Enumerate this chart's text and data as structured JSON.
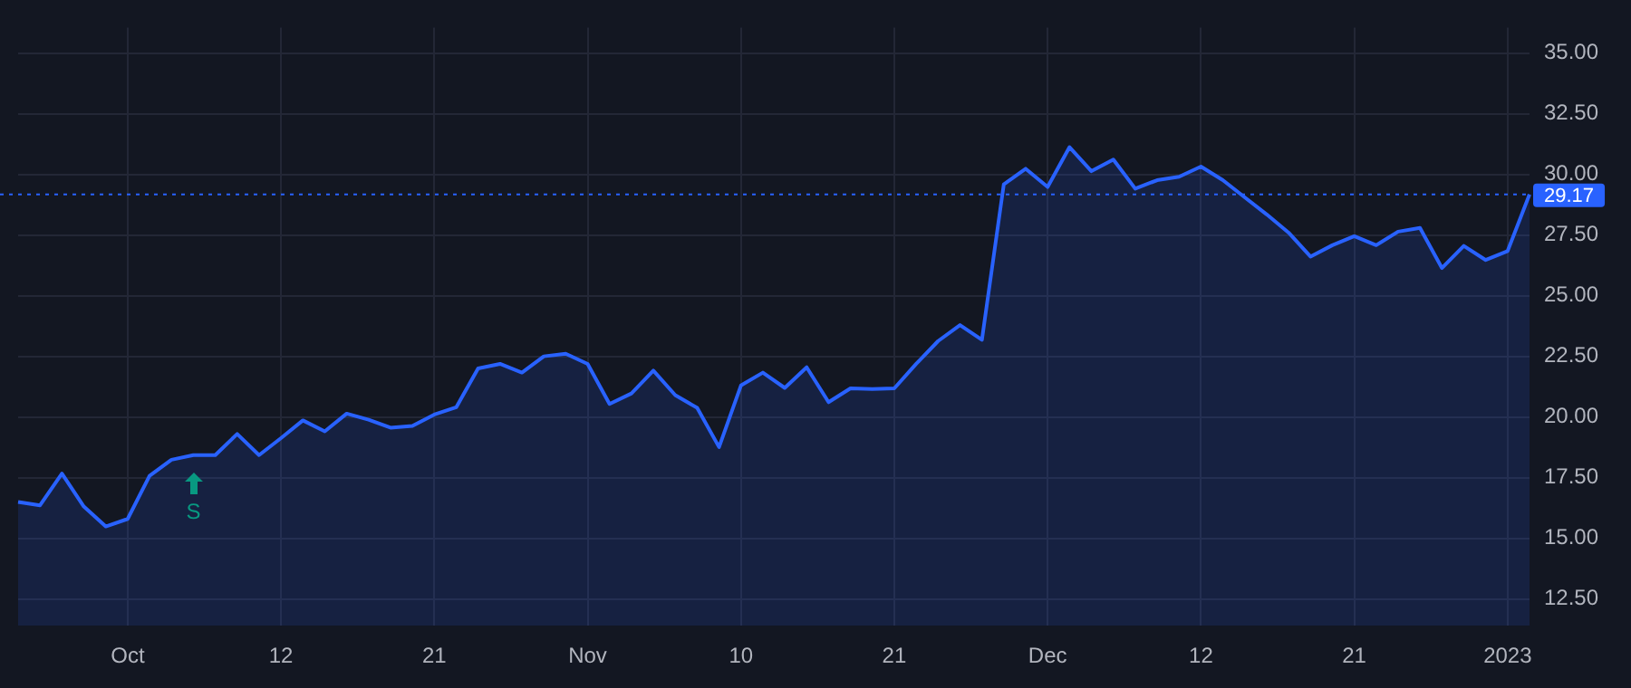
{
  "chart_data": {
    "type": "area",
    "categories": [
      null,
      null,
      null,
      null,
      null,
      "Oct",
      null,
      null,
      null,
      null,
      null,
      null,
      "12",
      null,
      null,
      null,
      null,
      null,
      null,
      "21",
      null,
      null,
      null,
      null,
      null,
      null,
      "Nov",
      null,
      null,
      null,
      null,
      null,
      null,
      "10",
      null,
      null,
      null,
      null,
      null,
      null,
      "21",
      null,
      null,
      null,
      null,
      null,
      null,
      "Dec",
      null,
      null,
      null,
      null,
      null,
      null,
      "12",
      null,
      null,
      null,
      null,
      null,
      null,
      "21",
      null,
      null,
      null,
      null,
      null,
      null,
      "2023",
      null
    ],
    "series": [
      {
        "color": "#2962ff",
        "values": [
          16.5,
          16.36,
          17.67,
          16.31,
          15.49,
          15.8,
          17.58,
          18.24,
          18.43,
          18.43,
          19.3,
          18.43,
          19.13,
          19.86,
          19.41,
          20.14,
          19.89,
          19.56,
          19.63,
          20.1,
          20.4,
          22.0,
          22.19,
          21.83,
          22.5,
          22.61,
          22.19,
          20.54,
          20.97,
          21.91,
          20.9,
          20.38,
          18.76,
          21.3,
          21.83,
          21.2,
          22.05,
          20.61,
          21.18,
          21.15,
          21.18,
          22.19,
          23.13,
          23.79,
          23.18,
          29.59,
          30.23,
          29.48,
          31.12,
          30.13,
          30.61,
          29.41,
          29.76,
          29.9,
          30.32,
          29.76,
          29.05,
          28.35,
          27.6,
          26.61,
          27.08,
          27.45,
          27.08,
          27.64,
          27.79,
          26.14,
          27.05,
          26.47,
          26.84,
          29.17
        ]
      }
    ],
    "ylim": [
      11.4,
      36.05
    ],
    "yticks": [
      {
        "value": 12.5,
        "label": "12.50"
      },
      {
        "value": 15,
        "label": "15.00"
      },
      {
        "value": 17.5,
        "label": "17.50"
      },
      {
        "value": 20,
        "label": "20.00"
      },
      {
        "value": 22.5,
        "label": "22.50"
      },
      {
        "value": 25,
        "label": "25.00"
      },
      {
        "value": 27.5,
        "label": "27.50"
      },
      {
        "value": 30,
        "label": "30.00"
      },
      {
        "value": 32.5,
        "label": "32.50"
      },
      {
        "value": 35,
        "label": "35.00"
      }
    ],
    "ref_lines": [
      {
        "axis": "y",
        "value": 29.17,
        "label": "29.17",
        "color": "#2962ff",
        "line_style": "dotted"
      }
    ],
    "annotations": [
      "S"
    ],
    "grid": true,
    "legend": false
  }
}
